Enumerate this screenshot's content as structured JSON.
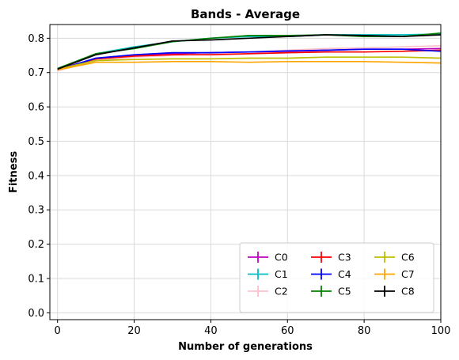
{
  "chart_data": {
    "type": "line",
    "title": "Bands - Average",
    "xlabel": "Number of generations",
    "ylabel": "Fitness",
    "xlim": [
      -2,
      100
    ],
    "ylim": [
      -0.02,
      0.84
    ],
    "xticks": [
      0,
      20,
      40,
      60,
      80,
      100
    ],
    "yticks": [
      0.0,
      0.1,
      0.2,
      0.3,
      0.4,
      0.5,
      0.6,
      0.7,
      0.8
    ],
    "ytick_labels": [
      "0.0",
      "0.1",
      "0.2",
      "0.3",
      "0.4",
      "0.5",
      "0.6",
      "0.7",
      "0.8"
    ],
    "xtick_labels": [
      "0",
      "20",
      "40",
      "60",
      "80",
      "100"
    ],
    "grid": true,
    "legend_position": "lower-right",
    "legend_columns": 3,
    "x": [
      0,
      10,
      20,
      30,
      40,
      50,
      60,
      70,
      80,
      90,
      100
    ],
    "series": [
      {
        "name": "C0",
        "color": "#bf00bf",
        "values": [
          0.71,
          0.74,
          0.75,
          0.755,
          0.758,
          0.76,
          0.762,
          0.765,
          0.768,
          0.768,
          0.77
        ]
      },
      {
        "name": "C1",
        "color": "#00bfbf",
        "values": [
          0.71,
          0.755,
          0.775,
          0.79,
          0.8,
          0.805,
          0.805,
          0.81,
          0.81,
          0.81,
          0.812
        ]
      },
      {
        "name": "C2",
        "color": "#ffc0cb",
        "values": [
          0.705,
          0.735,
          0.745,
          0.75,
          0.755,
          0.76,
          0.765,
          0.77,
          0.772,
          0.775,
          0.778
        ]
      },
      {
        "name": "C3",
        "color": "#ff0000",
        "values": [
          0.71,
          0.74,
          0.748,
          0.752,
          0.752,
          0.755,
          0.758,
          0.76,
          0.76,
          0.762,
          0.765
        ]
      },
      {
        "name": "C4",
        "color": "#0000ff",
        "values": [
          0.708,
          0.742,
          0.752,
          0.758,
          0.758,
          0.76,
          0.763,
          0.765,
          0.768,
          0.768,
          0.762
        ]
      },
      {
        "name": "C5",
        "color": "#008000",
        "values": [
          0.712,
          0.755,
          0.77,
          0.79,
          0.8,
          0.808,
          0.808,
          0.81,
          0.805,
          0.805,
          0.815
        ]
      },
      {
        "name": "C6",
        "color": "#bfbf00",
        "values": [
          0.71,
          0.735,
          0.738,
          0.74,
          0.74,
          0.742,
          0.742,
          0.745,
          0.745,
          0.745,
          0.742
        ]
      },
      {
        "name": "C7",
        "color": "#ffa500",
        "values": [
          0.708,
          0.73,
          0.73,
          0.732,
          0.732,
          0.73,
          0.732,
          0.732,
          0.732,
          0.73,
          0.728
        ]
      },
      {
        "name": "C8",
        "color": "#000000",
        "values": [
          0.71,
          0.752,
          0.772,
          0.792,
          0.795,
          0.8,
          0.805,
          0.81,
          0.808,
          0.805,
          0.81
        ]
      }
    ]
  }
}
